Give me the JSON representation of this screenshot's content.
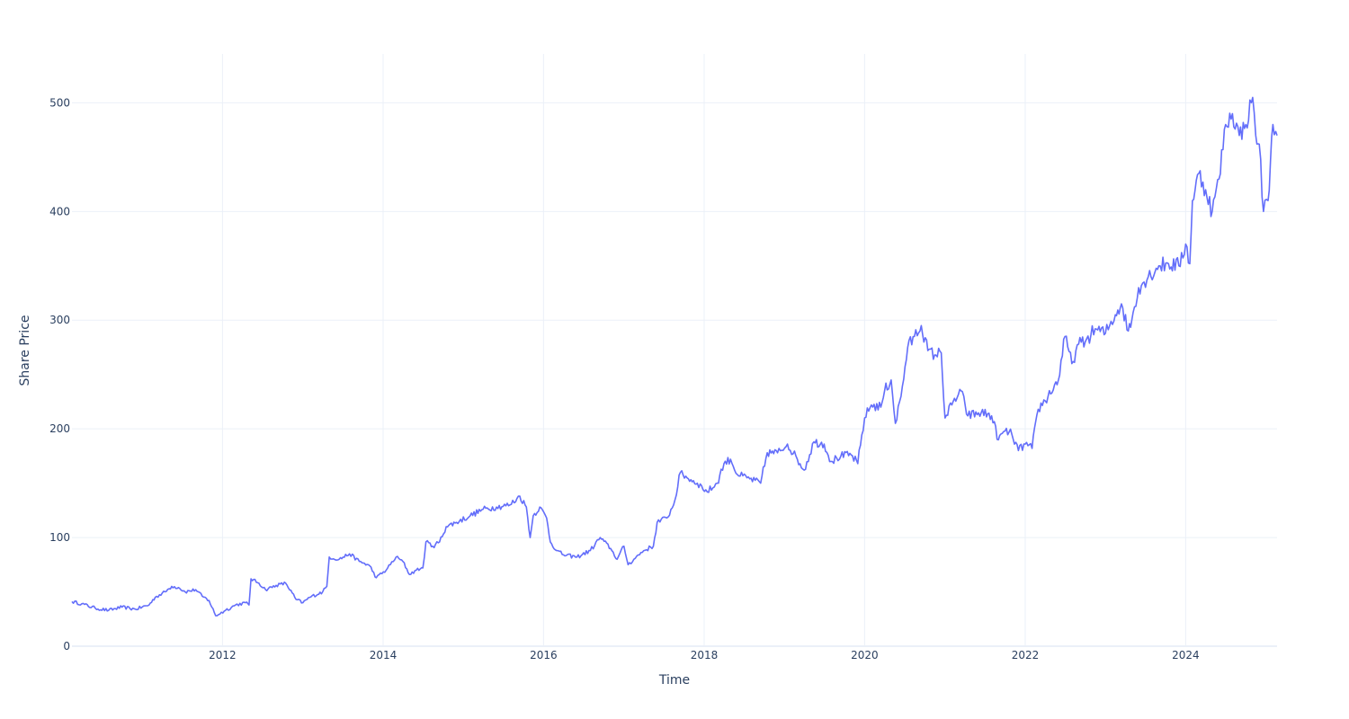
{
  "chart_data": {
    "type": "line",
    "title": "",
    "xlabel": "Time",
    "ylabel": "Share Price",
    "x_axis_type": "date",
    "xlim": [
      "2010-02-15",
      "2025-02-20"
    ],
    "ylim": [
      0,
      545
    ],
    "x_ticks": [
      {
        "value": "2012-01-01",
        "label": "2012"
      },
      {
        "value": "2014-01-01",
        "label": "2014"
      },
      {
        "value": "2016-01-01",
        "label": "2016"
      },
      {
        "value": "2018-01-01",
        "label": "2018"
      },
      {
        "value": "2020-01-01",
        "label": "2020"
      },
      {
        "value": "2022-01-01",
        "label": "2022"
      },
      {
        "value": "2024-01-01",
        "label": "2024"
      }
    ],
    "y_ticks": [
      0,
      100,
      200,
      300,
      400,
      500
    ],
    "grid": true,
    "legend": "none",
    "colors": {
      "line": "#636efa",
      "grid": "#ebf0f8",
      "text": "#2a3f5f"
    },
    "series": [
      {
        "points": [
          [
            "2010-02-15",
            41
          ],
          [
            "2010-04-01",
            39
          ],
          [
            "2010-06-01",
            35
          ],
          [
            "2010-08-01",
            33
          ],
          [
            "2010-10-01",
            36
          ],
          [
            "2010-12-01",
            34
          ],
          [
            "2011-02-01",
            38
          ],
          [
            "2011-03-01",
            45
          ],
          [
            "2011-04-15",
            50
          ],
          [
            "2011-05-15",
            55
          ],
          [
            "2011-06-15",
            54
          ],
          [
            "2011-07-15",
            50
          ],
          [
            "2011-09-01",
            52
          ],
          [
            "2011-10-01",
            46
          ],
          [
            "2011-11-01",
            42
          ],
          [
            "2011-12-01",
            28
          ],
          [
            "2012-01-15",
            33
          ],
          [
            "2012-03-01",
            38
          ],
          [
            "2012-04-15",
            40
          ],
          [
            "2012-05-01",
            38
          ],
          [
            "2012-05-10",
            62
          ],
          [
            "2012-06-15",
            58
          ],
          [
            "2012-07-15",
            52
          ],
          [
            "2012-09-01",
            56
          ],
          [
            "2012-10-15",
            58
          ],
          [
            "2012-12-01",
            43
          ],
          [
            "2013-01-01",
            40
          ],
          [
            "2013-02-01",
            45
          ],
          [
            "2013-04-01",
            50
          ],
          [
            "2013-04-20",
            55
          ],
          [
            "2013-05-01",
            82
          ],
          [
            "2013-06-15",
            80
          ],
          [
            "2013-08-01",
            85
          ],
          [
            "2013-09-15",
            78
          ],
          [
            "2013-11-01",
            74
          ],
          [
            "2013-12-01",
            63
          ],
          [
            "2014-01-15",
            70
          ],
          [
            "2014-03-01",
            82
          ],
          [
            "2014-04-01",
            78
          ],
          [
            "2014-05-01",
            66
          ],
          [
            "2014-06-01",
            70
          ],
          [
            "2014-07-01",
            72
          ],
          [
            "2014-07-15",
            96
          ],
          [
            "2014-08-15",
            92
          ],
          [
            "2014-09-15",
            96
          ],
          [
            "2014-10-15",
            110
          ],
          [
            "2014-12-01",
            114
          ],
          [
            "2015-02-01",
            120
          ],
          [
            "2015-04-01",
            126
          ],
          [
            "2015-06-01",
            128
          ],
          [
            "2015-08-01",
            130
          ],
          [
            "2015-09-15",
            138
          ],
          [
            "2015-10-15",
            128
          ],
          [
            "2015-11-01",
            100
          ],
          [
            "2015-11-15",
            120
          ],
          [
            "2015-12-15",
            128
          ],
          [
            "2016-01-15",
            118
          ],
          [
            "2016-02-01",
            96
          ],
          [
            "2016-03-01",
            88
          ],
          [
            "2016-04-01",
            84
          ],
          [
            "2016-06-01",
            82
          ],
          [
            "2016-08-01",
            88
          ],
          [
            "2016-09-15",
            100
          ],
          [
            "2016-11-01",
            90
          ],
          [
            "2016-12-01",
            80
          ],
          [
            "2017-01-01",
            92
          ],
          [
            "2017-01-20",
            75
          ],
          [
            "2017-02-15",
            80
          ],
          [
            "2017-04-01",
            88
          ],
          [
            "2017-05-15",
            92
          ],
          [
            "2017-06-01",
            114
          ],
          [
            "2017-07-15",
            118
          ],
          [
            "2017-08-15",
            130
          ],
          [
            "2017-09-15",
            160
          ],
          [
            "2017-10-15",
            155
          ],
          [
            "2017-12-01",
            150
          ],
          [
            "2018-01-15",
            142
          ],
          [
            "2018-03-01",
            150
          ],
          [
            "2018-04-01",
            168
          ],
          [
            "2018-05-01",
            172
          ],
          [
            "2018-06-01",
            158
          ],
          [
            "2018-07-15",
            155
          ],
          [
            "2018-09-15",
            150
          ],
          [
            "2018-10-15",
            178
          ],
          [
            "2018-12-01",
            178
          ],
          [
            "2019-01-15",
            186
          ],
          [
            "2019-03-01",
            172
          ],
          [
            "2019-04-01",
            162
          ],
          [
            "2019-05-15",
            188
          ],
          [
            "2019-07-01",
            186
          ],
          [
            "2019-08-01",
            170
          ],
          [
            "2019-09-15",
            175
          ],
          [
            "2019-11-01",
            176
          ],
          [
            "2019-12-01",
            168
          ],
          [
            "2020-01-01",
            210
          ],
          [
            "2020-02-01",
            222
          ],
          [
            "2020-03-15",
            220
          ],
          [
            "2020-04-01",
            235
          ],
          [
            "2020-05-01",
            245
          ],
          [
            "2020-05-20",
            205
          ],
          [
            "2020-06-15",
            230
          ],
          [
            "2020-07-15",
            275
          ],
          [
            "2020-08-15",
            285
          ],
          [
            "2020-09-15",
            295
          ],
          [
            "2020-10-15",
            272
          ],
          [
            "2020-11-15",
            268
          ],
          [
            "2020-12-15",
            270
          ],
          [
            "2021-01-01",
            210
          ],
          [
            "2021-02-01",
            222
          ],
          [
            "2021-03-15",
            235
          ],
          [
            "2021-04-15",
            212
          ],
          [
            "2021-06-15",
            215
          ],
          [
            "2021-08-01",
            212
          ],
          [
            "2021-09-01",
            190
          ],
          [
            "2021-10-01",
            198
          ],
          [
            "2021-11-01",
            195
          ],
          [
            "2021-12-01",
            180
          ],
          [
            "2022-01-01",
            186
          ],
          [
            "2022-02-01",
            182
          ],
          [
            "2022-03-01",
            218
          ],
          [
            "2022-04-15",
            230
          ],
          [
            "2022-06-01",
            245
          ],
          [
            "2022-07-01",
            285
          ],
          [
            "2022-08-01",
            260
          ],
          [
            "2022-09-01",
            278
          ],
          [
            "2022-10-01",
            280
          ],
          [
            "2022-11-15",
            292
          ],
          [
            "2023-01-01",
            288
          ],
          [
            "2023-02-15",
            305
          ],
          [
            "2023-03-15",
            315
          ],
          [
            "2023-04-15",
            290
          ],
          [
            "2023-05-01",
            300
          ],
          [
            "2023-06-01",
            330
          ],
          [
            "2023-07-15",
            340
          ],
          [
            "2023-09-01",
            350
          ],
          [
            "2023-10-15",
            352
          ],
          [
            "2023-12-01",
            350
          ],
          [
            "2024-01-01",
            370
          ],
          [
            "2024-01-20",
            352
          ],
          [
            "2024-02-01",
            410
          ],
          [
            "2024-03-01",
            435
          ],
          [
            "2024-04-01",
            420
          ],
          [
            "2024-05-01",
            400
          ],
          [
            "2024-06-01",
            430
          ],
          [
            "2024-07-01",
            480
          ],
          [
            "2024-08-01",
            490
          ],
          [
            "2024-09-01",
            470
          ],
          [
            "2024-10-01",
            480
          ],
          [
            "2024-11-01",
            505
          ],
          [
            "2024-11-15",
            470
          ],
          [
            "2024-12-01",
            462
          ],
          [
            "2024-12-20",
            400
          ],
          [
            "2025-01-10",
            410
          ],
          [
            "2025-02-01",
            480
          ],
          [
            "2025-02-20",
            470
          ]
        ]
      }
    ]
  }
}
